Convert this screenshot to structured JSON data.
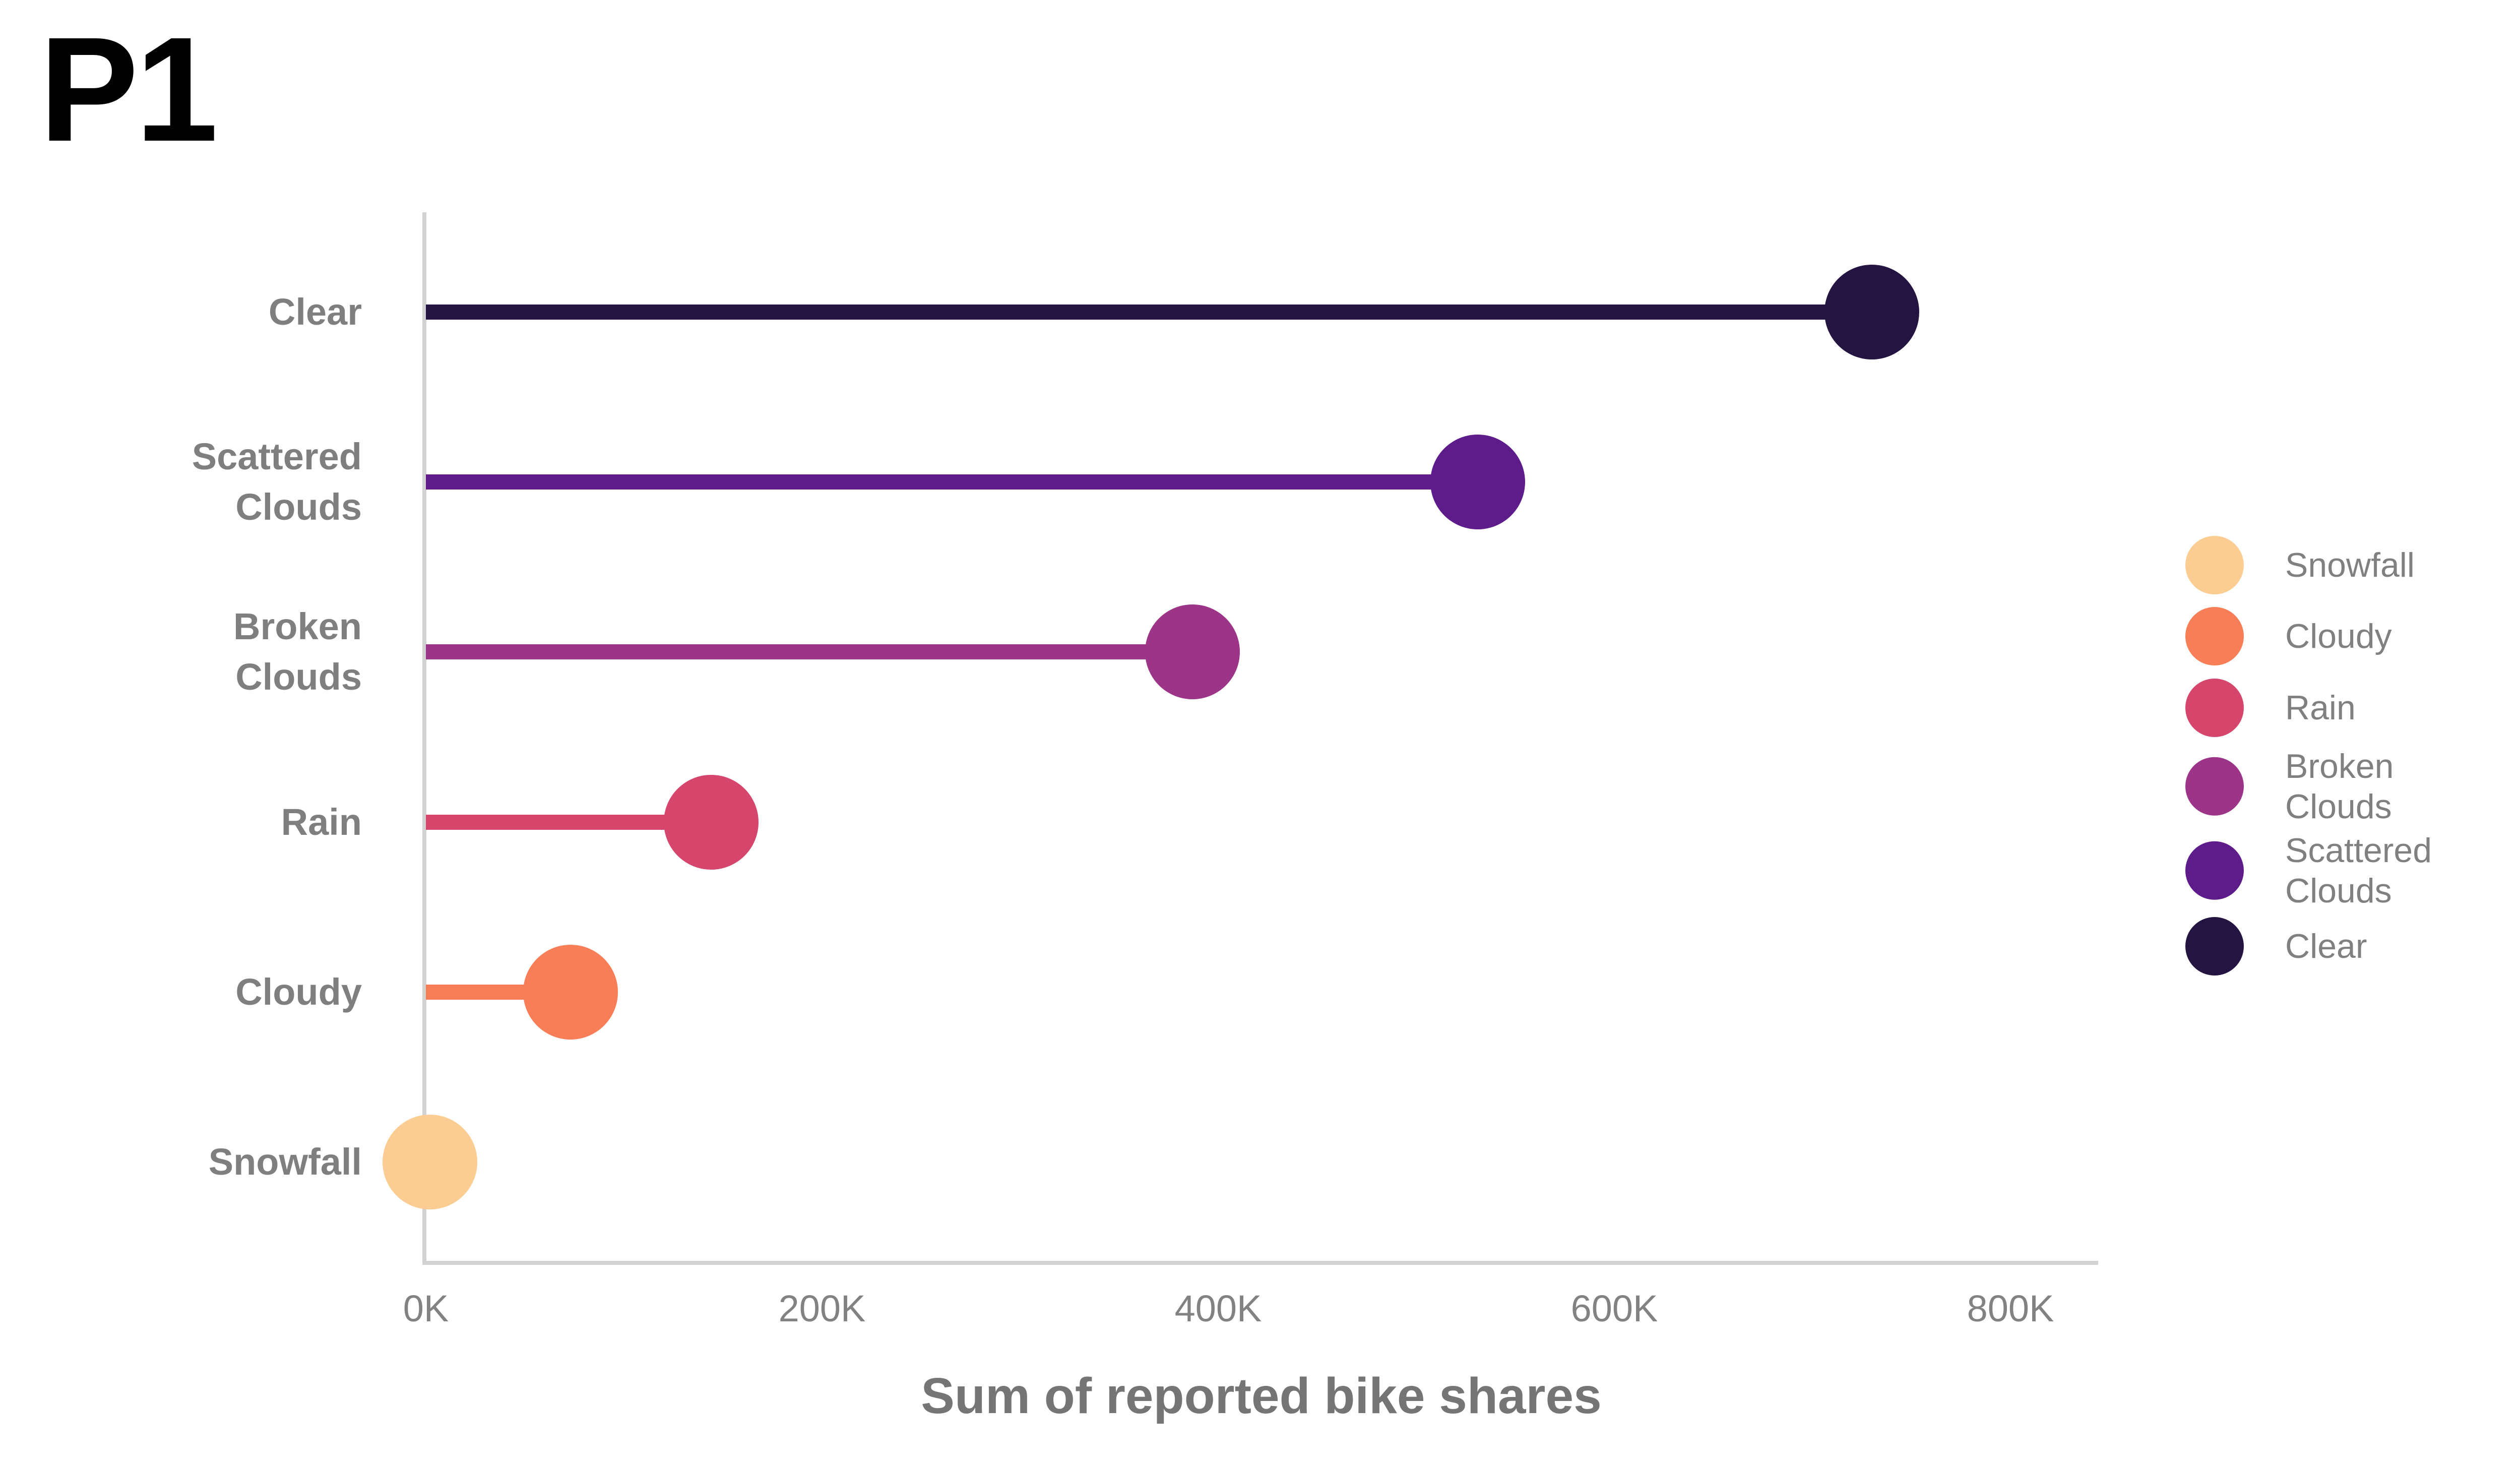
{
  "title": "P1",
  "chart_data": {
    "type": "bar",
    "variant": "lollipop",
    "orientation": "horizontal",
    "title": "P1",
    "xlabel": "Sum of reported bike shares",
    "ylabel": "",
    "xlim_k": [
      0,
      800
    ],
    "grid": false,
    "legend_position": "right",
    "x_ticks": [
      {
        "label": "0K",
        "value_k": 0
      },
      {
        "label": "200K",
        "value_k": 200
      },
      {
        "label": "400K",
        "value_k": 400
      },
      {
        "label": "600K",
        "value_k": 600
      },
      {
        "label": "800K",
        "value_k": 800
      }
    ],
    "categories": [
      "Clear",
      "Scattered Clouds",
      "Broken Clouds",
      "Rain",
      "Cloudy",
      "Snowfall"
    ],
    "rows": [
      {
        "category": "Clear",
        "label_lines": "Clear",
        "value_k": 730,
        "value": 730000,
        "color": "#241441"
      },
      {
        "category": "Scattered Clouds",
        "label_lines": "Scattered\nClouds",
        "value_k": 531,
        "value": 531000,
        "color": "#5E1B8A"
      },
      {
        "category": "Broken Clouds",
        "label_lines": "Broken\nClouds",
        "value_k": 387,
        "value": 387000,
        "color": "#9C3587"
      },
      {
        "category": "Rain",
        "label_lines": "Rain",
        "value_k": 144,
        "value": 144000,
        "color": "#D6456C"
      },
      {
        "category": "Cloudy",
        "label_lines": "Cloudy",
        "value_k": 73,
        "value": 73000,
        "color": "#F87E57"
      },
      {
        "category": "Snowfall",
        "label_lines": "Snowfall",
        "value_k": 2,
        "value": 2000,
        "color": "#FBCD93"
      }
    ],
    "legend": [
      {
        "label": "Snowfall",
        "color": "#FBCD93"
      },
      {
        "label": "Cloudy",
        "color": "#F87E57"
      },
      {
        "label": "Rain",
        "color": "#D6456C"
      },
      {
        "label": "Broken\nClouds",
        "color": "#9C3587"
      },
      {
        "label": "Scattered\nClouds",
        "color": "#5E1B8A"
      },
      {
        "label": "Clear",
        "color": "#241441"
      }
    ],
    "colors": {
      "axis_line": "#D2D2D2",
      "label_text": "#7F7F7F",
      "tick_text": "#828282",
      "axis_title_text": "#757575",
      "title_text": "#000000"
    }
  }
}
